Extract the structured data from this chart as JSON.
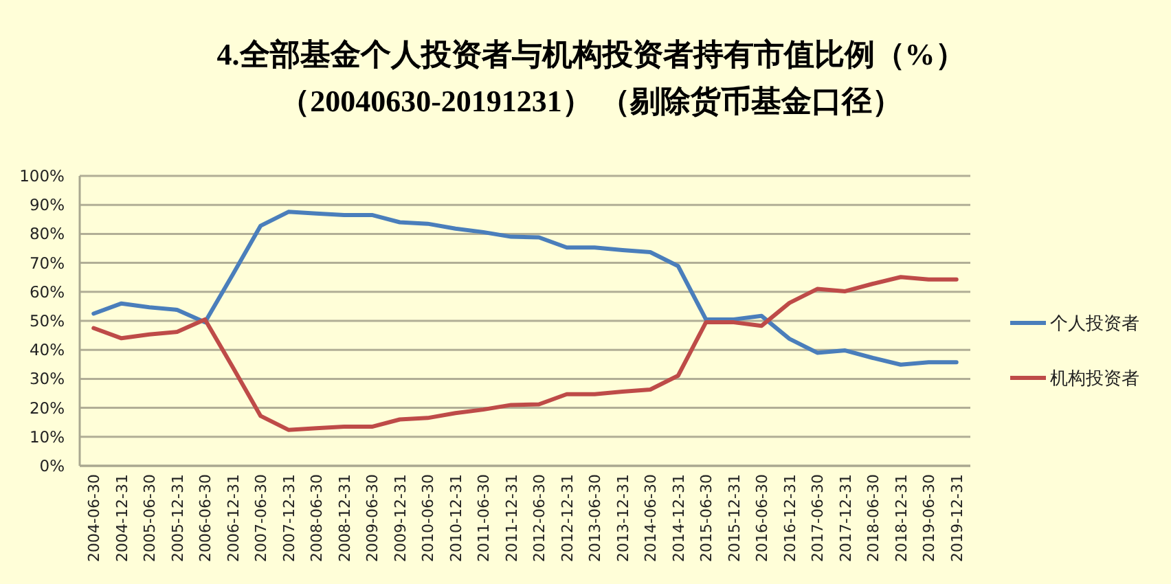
{
  "chart_data": {
    "type": "line",
    "title": "4.全部基金个人投资者与机构投资者持有市值比例（%）",
    "subtitle": "（20040630-20191231） （剔除货币基金口径）",
    "categories": [
      "2004-06-30",
      "2004-12-31",
      "2005-06-30",
      "2005-12-31",
      "2006-06-30",
      "2006-12-31",
      "2007-06-30",
      "2007-12-31",
      "2008-06-30",
      "2008-12-31",
      "2009-06-30",
      "2009-12-31",
      "2010-06-30",
      "2010-12-31",
      "2011-06-30",
      "2011-12-31",
      "2012-06-30",
      "2012-12-31",
      "2013-06-30",
      "2013-12-31",
      "2014-06-30",
      "2014-12-31",
      "2015-06-30",
      "2015-12-31",
      "2016-06-30",
      "2016-12-31",
      "2017-06-30",
      "2017-12-31",
      "2018-06-30",
      "2018-12-31",
      "2019-06-30",
      "2019-12-31"
    ],
    "series": [
      {
        "name": "个人投资者",
        "color": "#4a7ebb",
        "values": [
          52.5,
          56,
          54.7,
          53.8,
          49.5,
          66,
          82.8,
          87.6,
          87,
          86.5,
          86.5,
          84,
          83.5,
          81.8,
          80.6,
          79,
          78.8,
          75.3,
          75.3,
          74.4,
          73.7,
          68.9,
          50.5,
          50.5,
          51.7,
          43.8,
          39,
          39.8,
          37.2,
          34.9,
          35.7,
          35.7
        ]
      },
      {
        "name": "机构投资者",
        "color": "#be4b48",
        "values": [
          47.5,
          44,
          45.3,
          46.2,
          50.5,
          34,
          17.2,
          12.4,
          13,
          13.5,
          13.5,
          16,
          16.5,
          18.2,
          19.4,
          21,
          21.2,
          24.7,
          24.7,
          25.6,
          26.3,
          31.1,
          49.5,
          49.5,
          48.3,
          56.2,
          61,
          60.2,
          62.8,
          65.1,
          64.3,
          64.3
        ]
      }
    ],
    "ylim": [
      0,
      100
    ],
    "yticks": [
      {
        "value": 0,
        "label": "0%"
      },
      {
        "value": 10,
        "label": "10%"
      },
      {
        "value": 20,
        "label": "20%"
      },
      {
        "value": 30,
        "label": "30%"
      },
      {
        "value": 40,
        "label": "40%"
      },
      {
        "value": 50,
        "label": "50%"
      },
      {
        "value": 60,
        "label": "60%"
      },
      {
        "value": 70,
        "label": "70%"
      },
      {
        "value": 80,
        "label": "80%"
      },
      {
        "value": 90,
        "label": "90%"
      },
      {
        "value": 100,
        "label": "100%"
      }
    ],
    "grid": "y",
    "legend": "right"
  }
}
